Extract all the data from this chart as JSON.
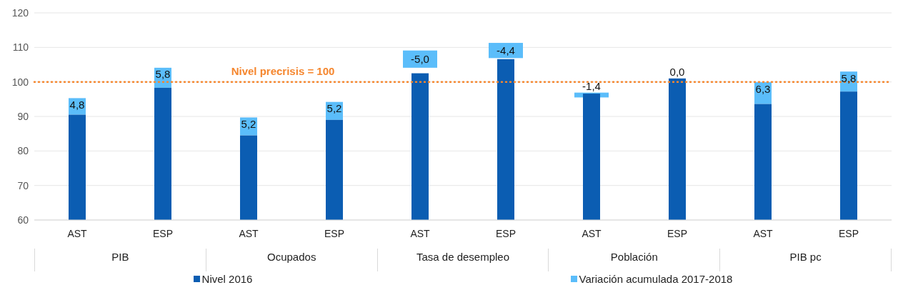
{
  "chart_data": {
    "type": "bar",
    "categories": [
      "AST",
      "ESP",
      "AST",
      "ESP",
      "AST",
      "ESP",
      "AST",
      "ESP",
      "AST",
      "ESP"
    ],
    "annotations": [
      "PIB",
      "Ocupados",
      "Tasa de desempleo",
      "Población",
      "PIB pc"
    ],
    "series": [
      {
        "name": "Nivel 2016",
        "color": "#0b5db2",
        "values": [
          90.5,
          98.3,
          84.5,
          89.0,
          102.5,
          106.6,
          96.6,
          101.0,
          93.6,
          97.2
        ]
      },
      {
        "name": "Variación acumulada 2017-2018",
        "color": "#5bbdfa",
        "values": [
          4.8,
          5.8,
          5.2,
          5.2,
          -5.0,
          -4.4,
          -1.4,
          0.0,
          6.3,
          5.8
        ],
        "base": [
          null,
          null,
          null,
          null,
          109.1,
          111.3,
          96.9,
          null,
          null,
          null
        ],
        "value_labels": [
          "4,8",
          "5,8",
          "5,2",
          "5,2",
          "-5,0",
          "-4,4",
          "-1,4",
          "0,0",
          "6,3",
          "5,8"
        ]
      }
    ],
    "ylim": [
      60,
      120
    ],
    "yticks": [
      60,
      70,
      80,
      90,
      100,
      110,
      120
    ],
    "stacked": true,
    "grid": "y",
    "legend": "bottom",
    "ref_lines": [
      {
        "axis": "y",
        "value": 100,
        "label": "Nivel precrisis = 100",
        "color": "#f5862e",
        "line_style": "dotted"
      }
    ]
  }
}
